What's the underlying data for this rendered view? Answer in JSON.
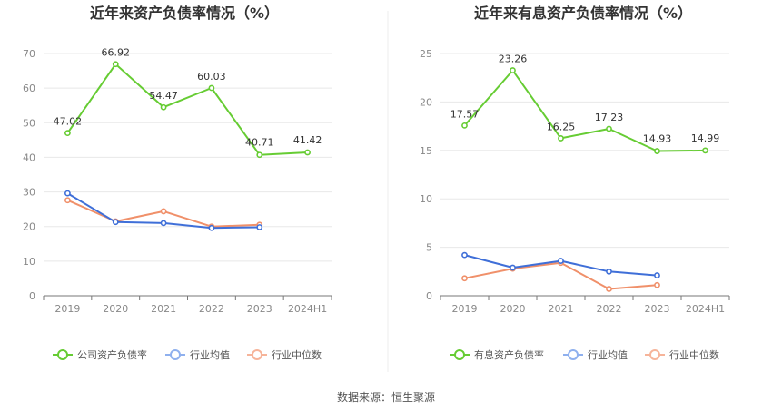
{
  "footer": {
    "source": "数据来源：恒生聚源"
  },
  "colors": {
    "main": "#66cc33",
    "avg": "#3f6fd8",
    "median": "#f0906a",
    "grid": "#e8e8e8",
    "axis": "#888888"
  },
  "chart_data": [
    {
      "type": "line",
      "title": "近年来资产负债率情况（%）",
      "categories": [
        "2019",
        "2020",
        "2021",
        "2022",
        "2023",
        "2024H1"
      ],
      "ylim": [
        0,
        70
      ],
      "yticks": [
        0,
        10,
        20,
        30,
        40,
        50,
        60,
        70
      ],
      "grid": true,
      "legend": "bottom",
      "series": [
        {
          "name": "公司资产负债率",
          "values": [
            47.02,
            66.92,
            54.47,
            60.03,
            40.71,
            41.42
          ],
          "labels": [
            "47.02",
            "66.92",
            "54.47",
            "60.03",
            "40.71",
            "41.42"
          ],
          "color": "#66cc33"
        },
        {
          "name": "行业均值",
          "values": [
            29.6,
            21.3,
            21.0,
            19.6,
            19.8,
            null
          ],
          "color": "#3f6fd8"
        },
        {
          "name": "行业中位数",
          "values": [
            27.6,
            21.5,
            24.4,
            20.0,
            20.5,
            null
          ],
          "color": "#f0906a"
        }
      ]
    },
    {
      "type": "line",
      "title": "近年来有息资产负债率情况（%）",
      "categories": [
        "2019",
        "2020",
        "2021",
        "2022",
        "2023",
        "2024H1"
      ],
      "ylim": [
        0,
        25
      ],
      "yticks": [
        0,
        5,
        10,
        15,
        20,
        25
      ],
      "grid": true,
      "legend": "bottom",
      "series": [
        {
          "name": "有息资产负债率",
          "values": [
            17.57,
            23.26,
            16.25,
            17.23,
            14.93,
            14.99
          ],
          "labels": [
            "17.57",
            "23.26",
            "16.25",
            "17.23",
            "14.93",
            "14.99"
          ],
          "color": "#66cc33"
        },
        {
          "name": "行业均值",
          "values": [
            4.2,
            2.9,
            3.6,
            2.5,
            2.1,
            null
          ],
          "color": "#3f6fd8"
        },
        {
          "name": "行业中位数",
          "values": [
            1.8,
            2.8,
            3.4,
            0.7,
            1.1,
            null
          ],
          "color": "#f0906a"
        }
      ]
    }
  ]
}
